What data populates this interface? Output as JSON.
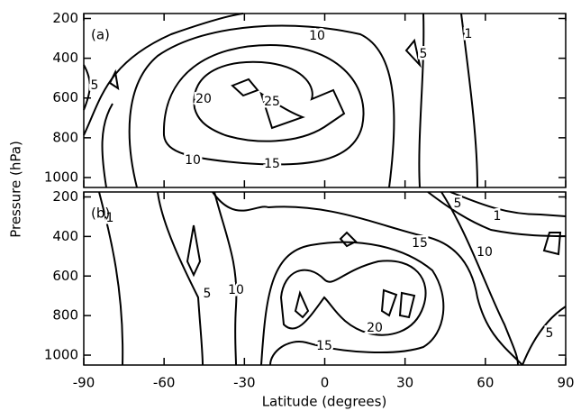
{
  "chart_data": [
    {
      "type": "contour",
      "panel_label": "(a)",
      "xlim": [
        -90,
        90
      ],
      "xticks": [
        -90,
        -60,
        -30,
        0,
        30,
        60,
        90
      ],
      "ylim": [
        1050,
        175
      ],
      "yticks": [
        200,
        400,
        600,
        800,
        1000
      ],
      "show_xtick_labels": false,
      "color": "#000000",
      "contour_labels": [
        10,
        5,
        1,
        20,
        25,
        5,
        10,
        15
      ]
    },
    {
      "type": "contour",
      "panel_label": "(b)",
      "xlim": [
        -90,
        90
      ],
      "xticks": [
        -90,
        -60,
        -30,
        0,
        30,
        60,
        90
      ],
      "ylim": [
        1050,
        175
      ],
      "yticks": [
        200,
        400,
        600,
        800,
        1000
      ],
      "show_xtick_labels": true,
      "color": "#000000",
      "contour_labels": [
        5,
        1,
        1,
        15,
        10,
        10,
        5,
        20,
        15,
        5
      ]
    }
  ],
  "shared": {
    "xlabel": "Latitude (degrees)",
    "ylabel": "Pressure (hPa)"
  }
}
